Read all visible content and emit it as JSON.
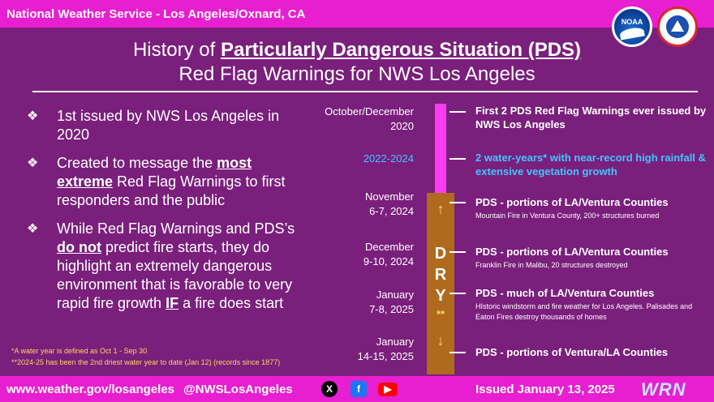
{
  "header": {
    "office": "National Weather Service - Los Angeles/Oxnard, CA",
    "logo_noaa": "NOAA"
  },
  "title": {
    "line1_pre": "History of ",
    "line1_em": "Particularly Dangerous Situation (PDS)",
    "line2": "Red Flag Warnings for NWS Los Angeles"
  },
  "bullets": {
    "b1": "1st issued by NWS Los Angeles in 2020",
    "b2_a": "Created to message the ",
    "b2_em": "most extreme",
    "b2_b": " Red Flag Warnings to first responders and the public",
    "b3_a": "While Red Flag Warnings and PDS’s ",
    "b3_em": "do not",
    "b3_b": " predict fire starts, they do highlight an extremely dangerous environment that is favorable to very rapid fire growth ",
    "b3_em2": "IF",
    "b3_c": " a fire does start"
  },
  "notes": {
    "n1": "*A water year is defined as Oct 1 - Sep 30",
    "n2": "**2024-25 has been the 2nd driest water year to date (Jan 12) (records since 1877)"
  },
  "dry": {
    "up": "↑",
    "d": "D",
    "r": "R",
    "y": "Y",
    "stars": "**",
    "down": "↓"
  },
  "timeline": [
    {
      "date1": "October/December",
      "date2": "2020",
      "head": "First 2 PDS Red Flag Warnings ever issued by NWS Los Angeles",
      "detail": ""
    },
    {
      "date1": "2022-2024",
      "date2": "",
      "head": "2 water-years* with near-record high rainfall & extensive vegetation growth",
      "detail": ""
    },
    {
      "date1": "November",
      "date2": "6-7, 2024",
      "head": "PDS - portions of LA/Ventura Counties",
      "detail": "Mountain Fire in Ventura County, 200+ structures burned"
    },
    {
      "date1": "December",
      "date2": "9-10, 2024",
      "head": "PDS - portions of LA/Ventura Counties",
      "detail": "Franklin Fire in Malibu, 20 structures destroyed"
    },
    {
      "date1": "January",
      "date2": "7-8, 2025",
      "head": "PDS - much of LA/Ventura Counties",
      "detail": "HIstoric windstorm and fire weather for Los Angeles. Palisades and Eaton Fires destroy thousands of homes"
    },
    {
      "date1": "January",
      "date2": "14-15, 2025",
      "head": "PDS - portions of Ventura/LA Counties",
      "detail": ""
    }
  ],
  "footer": {
    "url": "www.weather.gov/losangeles",
    "handle": "@NWSLosAngeles",
    "x_icon": "X",
    "fb_icon": "f",
    "yt_icon": "▶",
    "issued": "Issued January 13, 2025",
    "wrn": "WRN"
  },
  "colors": {
    "background": "#7a1f7c",
    "bar": "#e81fd0",
    "timeline": "#ff3cf0",
    "dry": "#b06a1e",
    "accent_blue": "#41c6ff",
    "note": "#ffd75e"
  }
}
